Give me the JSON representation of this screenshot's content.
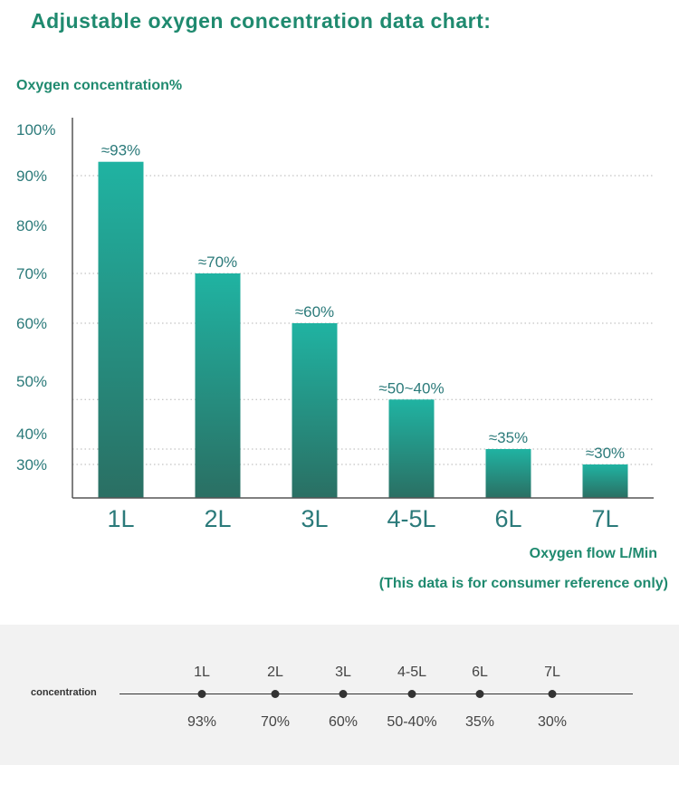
{
  "header": {
    "title": "Adjustable oxygen concentration data chart:",
    "note": "(This data is for consumer reference only)"
  },
  "chart_data": {
    "type": "bar",
    "ylabel": "Oxygen concentration%",
    "xlabel": "Oxygen flow L/Min",
    "categories": [
      "1L",
      "2L",
      "3L",
      "4-5L",
      "6L",
      "7L"
    ],
    "values": [
      93,
      70,
      60,
      46.5,
      35,
      30
    ],
    "data_labels": [
      "≈93%",
      "≈70%",
      "≈60%",
      "≈50~40%",
      "≈35%",
      "≈30%"
    ],
    "y_ticks": [
      {
        "value": 100,
        "label": "100%"
      },
      {
        "value": 90,
        "label": "90%"
      },
      {
        "value": 80,
        "label": "80%"
      },
      {
        "value": 70,
        "label": "70%"
      },
      {
        "value": 60,
        "label": "60%"
      },
      {
        "value": 50,
        "label": "50%"
      },
      {
        "value": 40,
        "label": "40%"
      },
      {
        "value": 30,
        "label": "30%"
      }
    ],
    "gridlines": [
      90,
      70,
      60,
      46.5,
      35,
      30
    ],
    "grid": "dotted",
    "colors": {
      "bar_top": "#20b3a2",
      "bar_bottom": "#2a6f63",
      "axis": "#555555",
      "tick_text": "#2b7a7a"
    }
  },
  "summary": {
    "label": "concentration",
    "items": [
      {
        "flow": "1L",
        "concentration": "93%"
      },
      {
        "flow": "2L",
        "concentration": "70%"
      },
      {
        "flow": "3L",
        "concentration": "60%"
      },
      {
        "flow": "4-5L",
        "concentration": "50-40%"
      },
      {
        "flow": "6L",
        "concentration": "35%"
      },
      {
        "flow": "7L",
        "concentration": "30%"
      }
    ]
  }
}
